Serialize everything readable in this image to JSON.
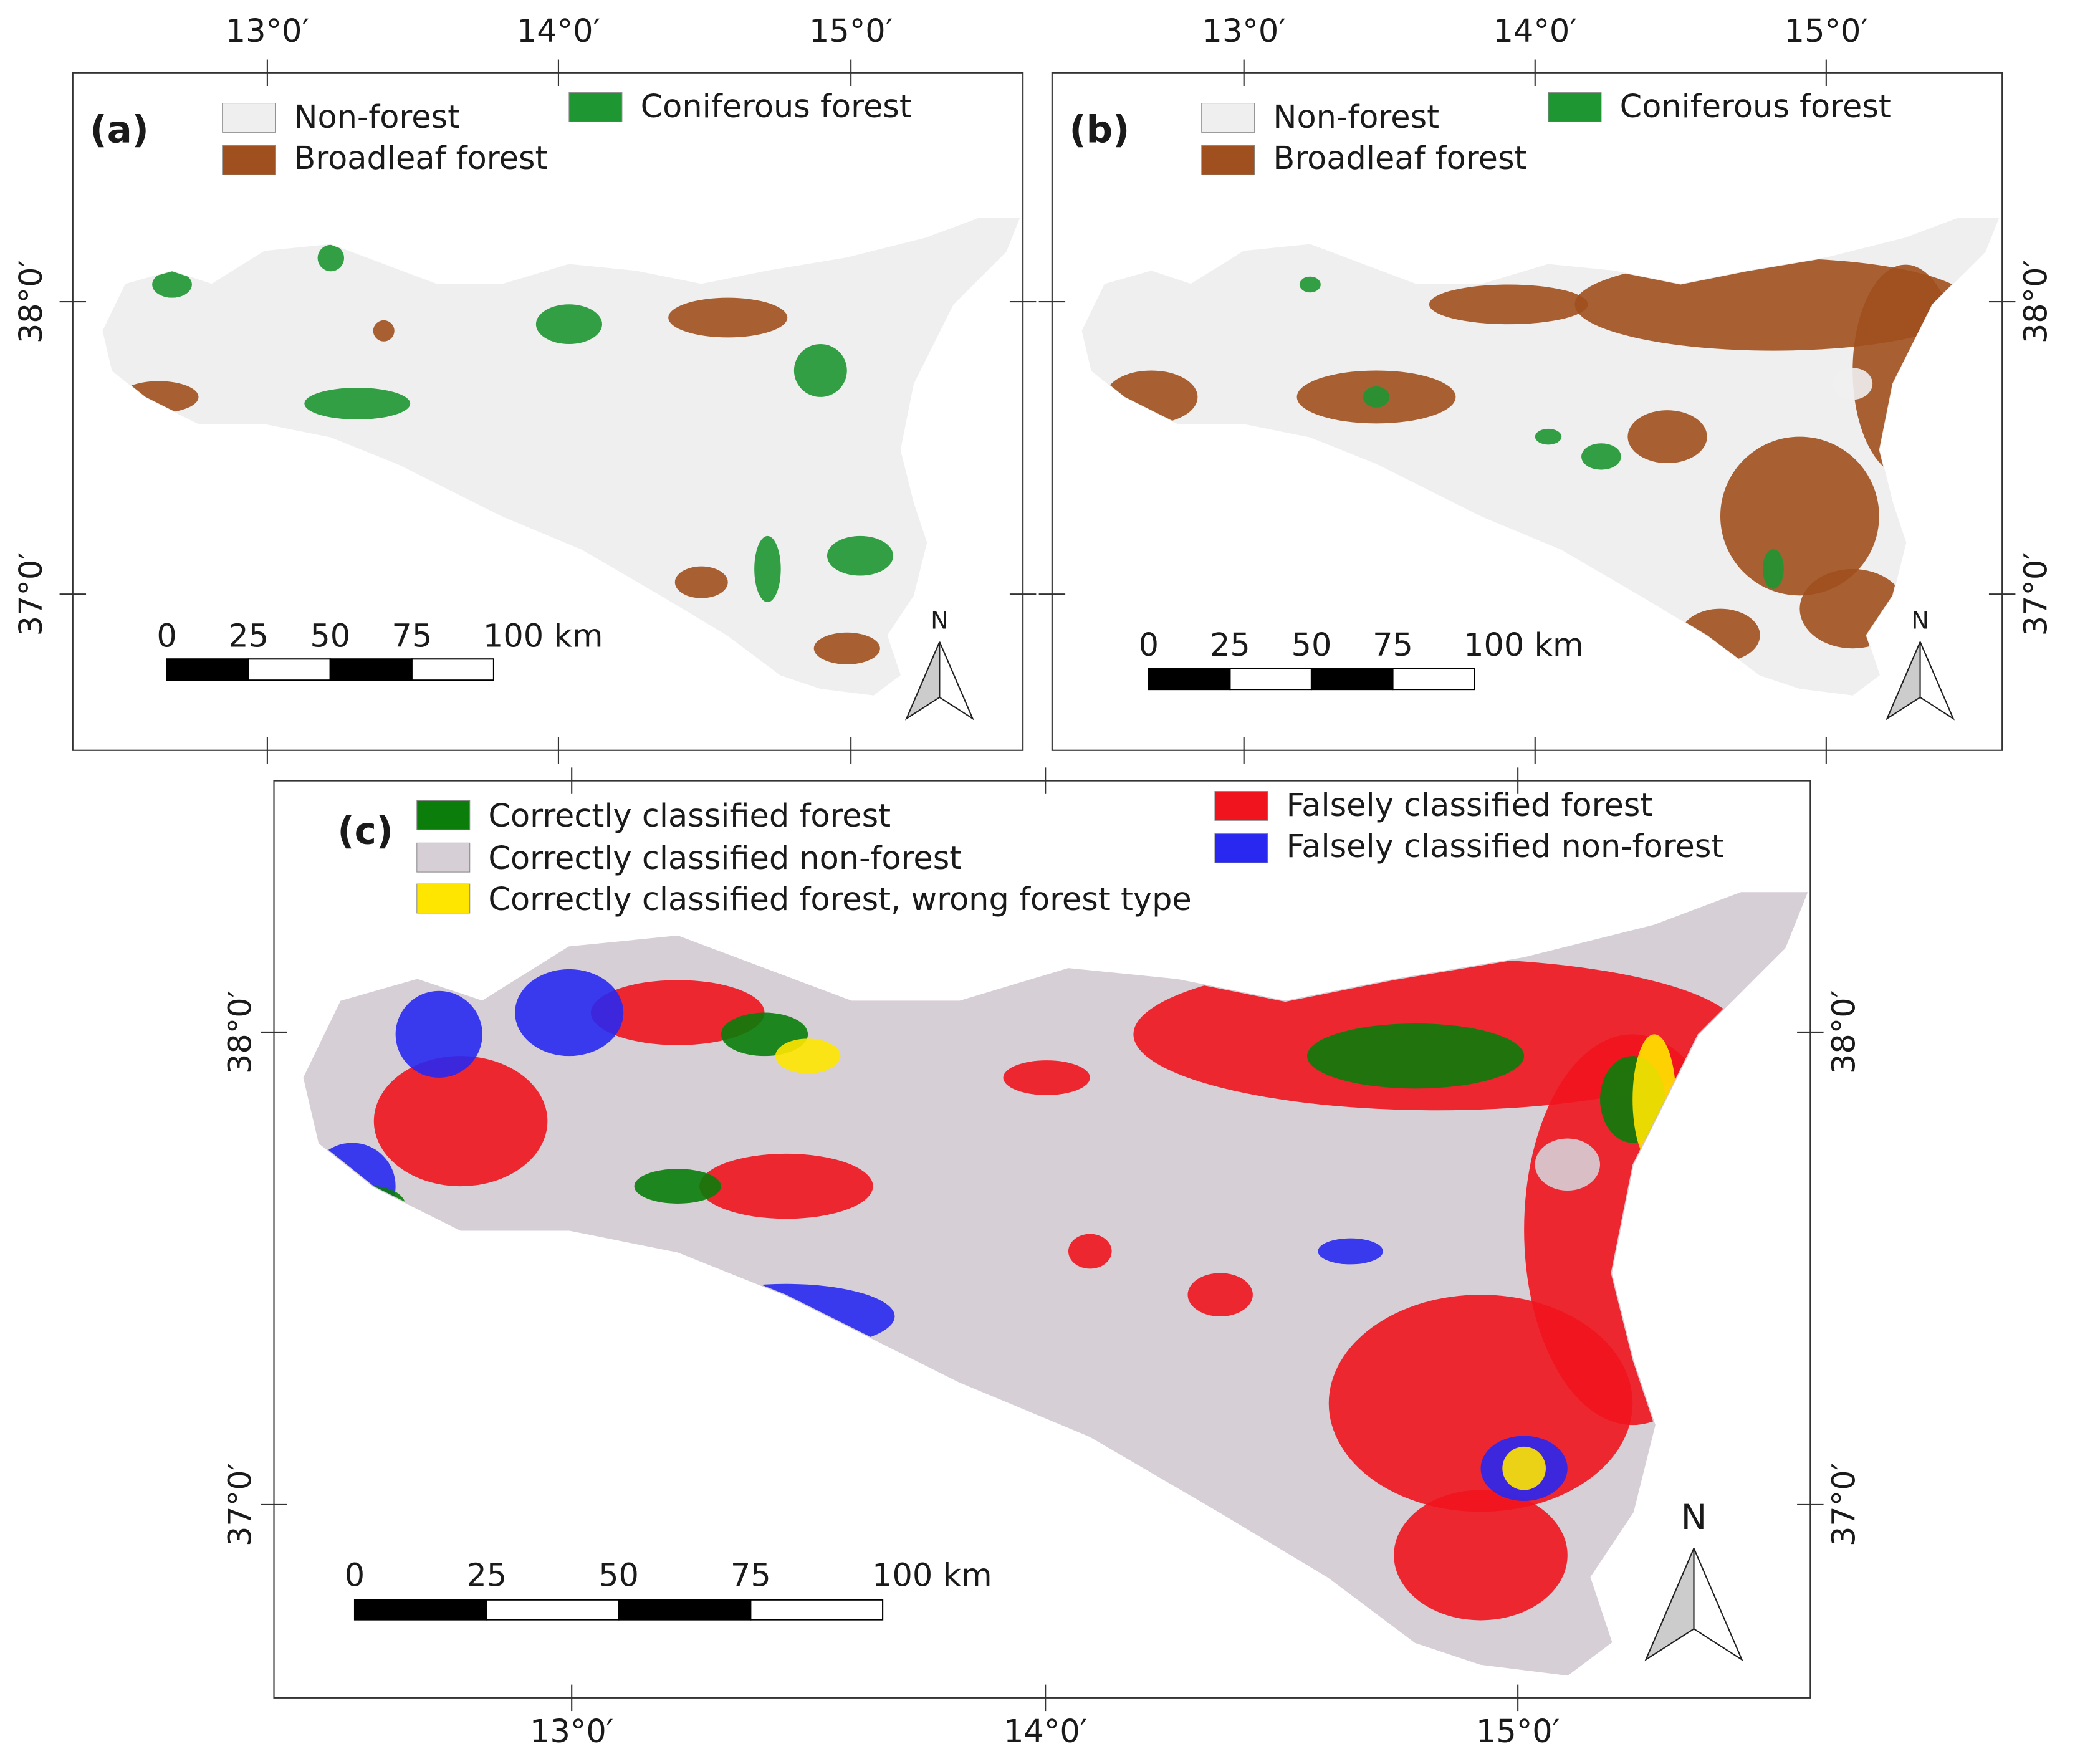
{
  "panels": [
    {
      "label": "(a)",
      "legend": [
        {
          "label": "Non-forest",
          "color": "#efefef"
        },
        {
          "label": "Broadleaf forest",
          "color": "#a0501e"
        },
        {
          "label": "Coniferous forest",
          "color": "#1e9632"
        }
      ],
      "x_ticks": [
        "13°0′",
        "14°0′",
        "15°0′"
      ],
      "y_ticks": [
        "38°0′",
        "37°0′"
      ],
      "scale_bar": [
        "0",
        "25",
        "50",
        "75",
        "100 km"
      ],
      "north": "N"
    },
    {
      "label": "(b)",
      "legend": [
        {
          "label": "Non-forest",
          "color": "#efefef"
        },
        {
          "label": "Broadleaf forest",
          "color": "#a0501e"
        },
        {
          "label": "Coniferous forest",
          "color": "#1e9632"
        }
      ],
      "x_ticks": [
        "13°0′",
        "14°0′",
        "15°0′"
      ],
      "y_ticks": [
        "38°0′",
        "37°0′"
      ],
      "scale_bar": [
        "0",
        "25",
        "50",
        "75",
        "100 km"
      ],
      "north": "N"
    },
    {
      "label": "(c)",
      "legend": [
        {
          "label": "Correctly classified forest",
          "color": "#0a7d0a"
        },
        {
          "label": "Correctly classified non-forest",
          "color": "#d6cfd6"
        },
        {
          "label": "Correctly classified forest, wrong forest type",
          "color": "#ffe600"
        },
        {
          "label": "Falsely classified forest",
          "color": "#f0141e"
        },
        {
          "label": "Falsely classified non-forest",
          "color": "#2828f0"
        }
      ],
      "x_ticks": [
        "13°0′",
        "14°0′",
        "15°0′"
      ],
      "y_ticks": [
        "38°0′",
        "37°0′"
      ],
      "scale_bar": [
        "0",
        "25",
        "50",
        "75",
        "100 km"
      ],
      "north": "N"
    }
  ]
}
